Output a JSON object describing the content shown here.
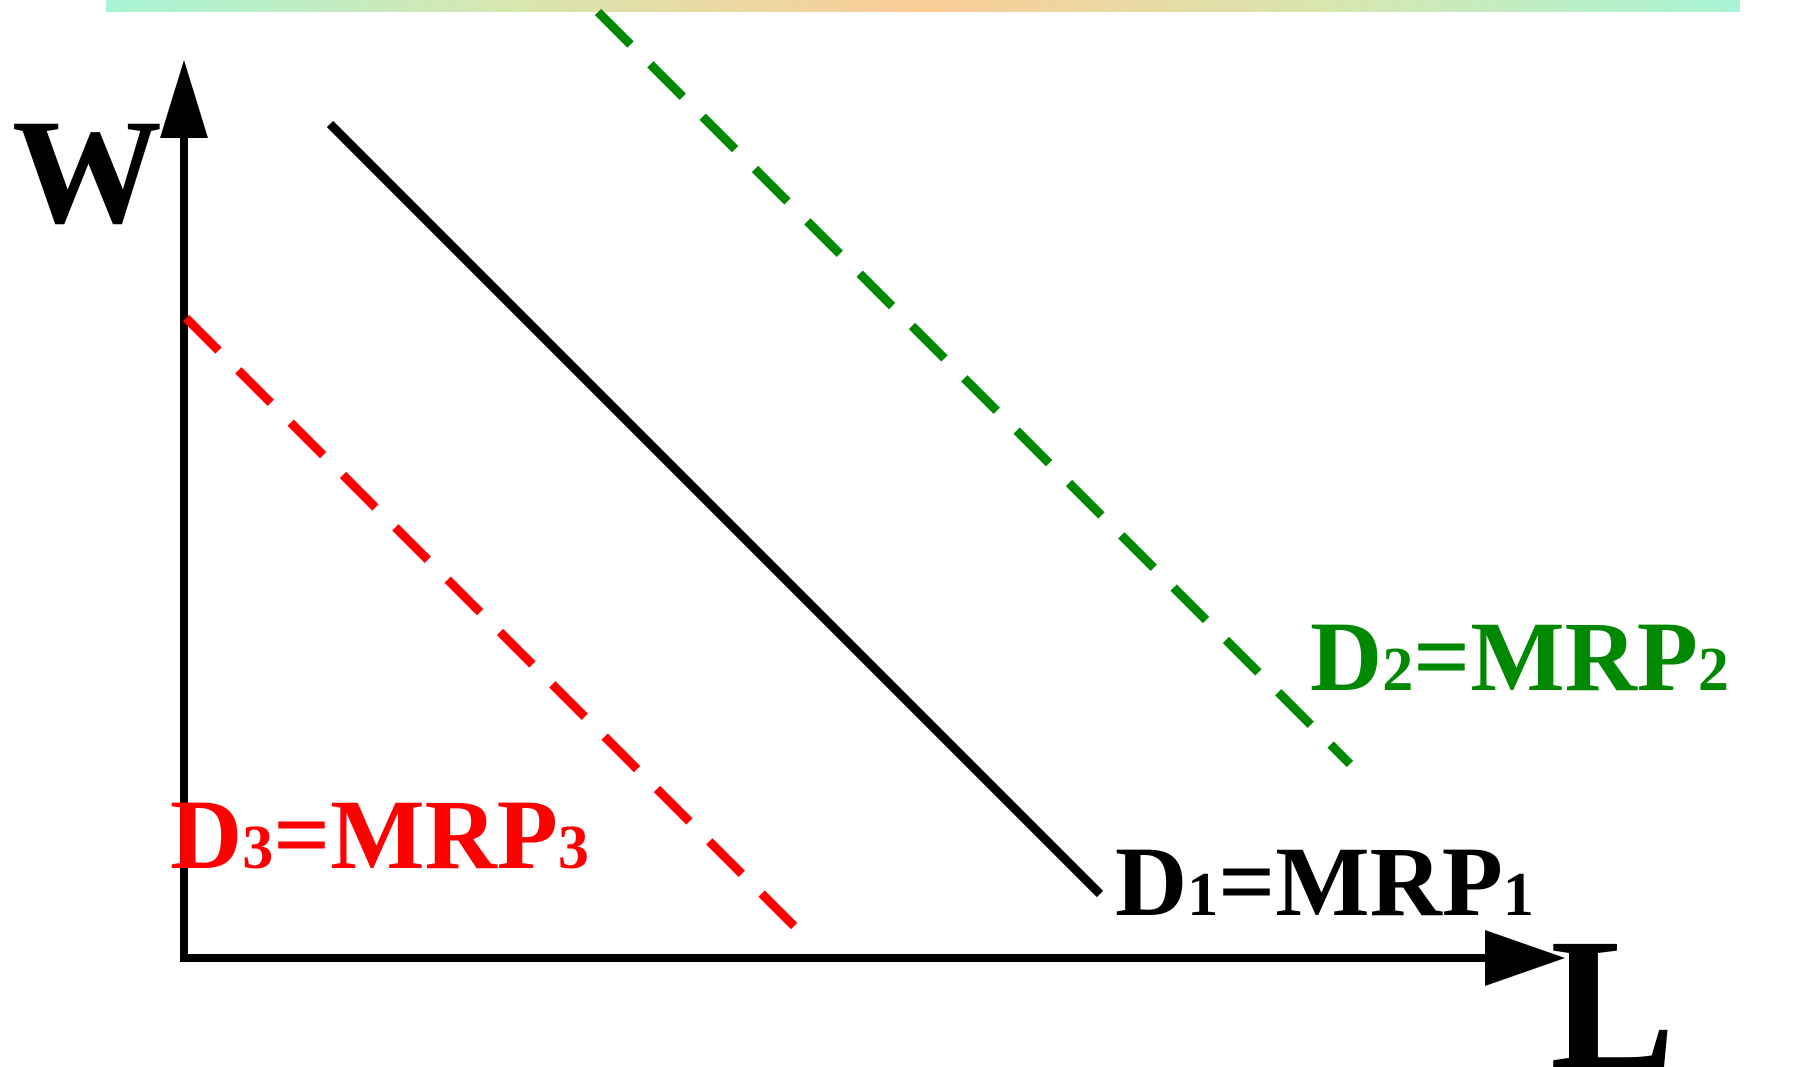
{
  "axes": {
    "y_label": "W",
    "x_label": "L"
  },
  "curves": [
    {
      "key": "d1",
      "main": "D",
      "sub": "1",
      "mid": "=MRP",
      "sub2": "1",
      "color": "#000000",
      "style": "solid"
    },
    {
      "key": "d2",
      "main": "D",
      "sub": "2",
      "mid": "=MRP",
      "sub2": "2",
      "color": "#008800",
      "style": "dashed"
    },
    {
      "key": "d3",
      "main": "D",
      "sub": "3",
      "mid": "=MRP",
      "sub2": "3",
      "color": "#ff0000",
      "style": "dashed"
    }
  ]
}
